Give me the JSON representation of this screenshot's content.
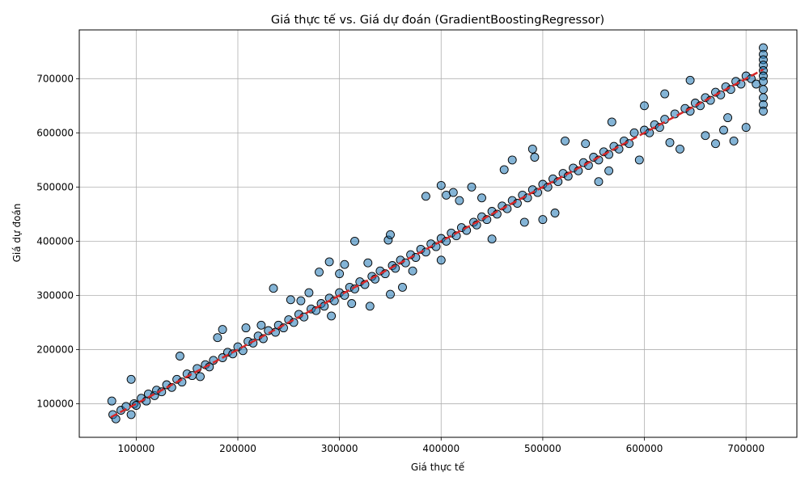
{
  "chart_data": {
    "type": "scatter",
    "title": "Giá thực tế vs. Giá dự đoán (GradientBoostingRegressor)",
    "xlabel": "Giá thực tế",
    "ylabel": "Giá dự đoán",
    "xlim": [
      44000,
      750000
    ],
    "ylim": [
      38000,
      790000
    ],
    "xticks": [
      100000,
      200000,
      300000,
      400000,
      500000,
      600000,
      700000
    ],
    "yticks": [
      100000,
      200000,
      300000,
      400000,
      500000,
      600000,
      700000
    ],
    "xtick_labels": [
      "100000",
      "200000",
      "300000",
      "400000",
      "500000",
      "600000",
      "700000"
    ],
    "ytick_labels": [
      "100000",
      "200000",
      "300000",
      "400000",
      "500000",
      "600000",
      "700000"
    ],
    "grid": true,
    "reference_line": {
      "x": [
        75000,
        717000
      ],
      "y": [
        75000,
        717000
      ],
      "style": "dashed",
      "color": "#d62728"
    },
    "marker_color": "#1f77b4",
    "marker_edge_color": "#000000",
    "points": [
      [
        76000,
        105000
      ],
      [
        77000,
        80000
      ],
      [
        80000,
        72000
      ],
      [
        85000,
        88000
      ],
      [
        90000,
        95000
      ],
      [
        95000,
        145000
      ],
      [
        95000,
        80000
      ],
      [
        98000,
        100000
      ],
      [
        100000,
        97000
      ],
      [
        105000,
        110000
      ],
      [
        110000,
        105000
      ],
      [
        112000,
        118000
      ],
      [
        118000,
        115000
      ],
      [
        120000,
        125000
      ],
      [
        125000,
        122000
      ],
      [
        130000,
        135000
      ],
      [
        135000,
        130000
      ],
      [
        140000,
        145000
      ],
      [
        143000,
        188000
      ],
      [
        145000,
        140000
      ],
      [
        150000,
        155000
      ],
      [
        155000,
        152000
      ],
      [
        160000,
        165000
      ],
      [
        163000,
        150000
      ],
      [
        168000,
        172000
      ],
      [
        172000,
        168000
      ],
      [
        176000,
        180000
      ],
      [
        180000,
        222000
      ],
      [
        185000,
        237000
      ],
      [
        185000,
        185000
      ],
      [
        190000,
        195000
      ],
      [
        195000,
        192000
      ],
      [
        200000,
        205000
      ],
      [
        205000,
        198000
      ],
      [
        208000,
        240000
      ],
      [
        210000,
        215000
      ],
      [
        215000,
        212000
      ],
      [
        220000,
        225000
      ],
      [
        223000,
        245000
      ],
      [
        225000,
        220000
      ],
      [
        230000,
        235000
      ],
      [
        235000,
        313000
      ],
      [
        237000,
        232000
      ],
      [
        240000,
        245000
      ],
      [
        245000,
        240000
      ],
      [
        250000,
        255000
      ],
      [
        252000,
        292000
      ],
      [
        255000,
        250000
      ],
      [
        260000,
        265000
      ],
      [
        262000,
        290000
      ],
      [
        265000,
        260000
      ],
      [
        270000,
        305000
      ],
      [
        272000,
        275000
      ],
      [
        277000,
        272000
      ],
      [
        280000,
        343000
      ],
      [
        282000,
        285000
      ],
      [
        285000,
        280000
      ],
      [
        290000,
        362000
      ],
      [
        290000,
        295000
      ],
      [
        292000,
        262000
      ],
      [
        295000,
        290000
      ],
      [
        300000,
        340000
      ],
      [
        300000,
        305000
      ],
      [
        305000,
        357000
      ],
      [
        305000,
        300000
      ],
      [
        310000,
        315000
      ],
      [
        312000,
        285000
      ],
      [
        315000,
        400000
      ],
      [
        315000,
        312000
      ],
      [
        320000,
        325000
      ],
      [
        325000,
        320000
      ],
      [
        328000,
        360000
      ],
      [
        330000,
        280000
      ],
      [
        332000,
        335000
      ],
      [
        335000,
        330000
      ],
      [
        340000,
        345000
      ],
      [
        345000,
        340000
      ],
      [
        348000,
        402000
      ],
      [
        350000,
        412000
      ],
      [
        350000,
        302000
      ],
      [
        352000,
        355000
      ],
      [
        355000,
        350000
      ],
      [
        360000,
        365000
      ],
      [
        362000,
        315000
      ],
      [
        365000,
        360000
      ],
      [
        370000,
        375000
      ],
      [
        372000,
        345000
      ],
      [
        375000,
        370000
      ],
      [
        380000,
        385000
      ],
      [
        385000,
        483000
      ],
      [
        385000,
        380000
      ],
      [
        390000,
        395000
      ],
      [
        395000,
        390000
      ],
      [
        400000,
        503000
      ],
      [
        400000,
        405000
      ],
      [
        400000,
        365000
      ],
      [
        405000,
        485000
      ],
      [
        405000,
        400000
      ],
      [
        410000,
        415000
      ],
      [
        412000,
        490000
      ],
      [
        415000,
        410000
      ],
      [
        418000,
        475000
      ],
      [
        420000,
        425000
      ],
      [
        425000,
        420000
      ],
      [
        430000,
        500000
      ],
      [
        432000,
        435000
      ],
      [
        435000,
        430000
      ],
      [
        440000,
        480000
      ],
      [
        440000,
        445000
      ],
      [
        445000,
        440000
      ],
      [
        450000,
        404000
      ],
      [
        450000,
        455000
      ],
      [
        455000,
        450000
      ],
      [
        460000,
        465000
      ],
      [
        462000,
        532000
      ],
      [
        465000,
        460000
      ],
      [
        470000,
        550000
      ],
      [
        470000,
        475000
      ],
      [
        475000,
        470000
      ],
      [
        480000,
        485000
      ],
      [
        482000,
        435000
      ],
      [
        485000,
        480000
      ],
      [
        490000,
        570000
      ],
      [
        490000,
        495000
      ],
      [
        492000,
        555000
      ],
      [
        495000,
        490000
      ],
      [
        500000,
        505000
      ],
      [
        500000,
        440000
      ],
      [
        505000,
        500000
      ],
      [
        510000,
        515000
      ],
      [
        512000,
        452000
      ],
      [
        515000,
        510000
      ],
      [
        520000,
        525000
      ],
      [
        522000,
        585000
      ],
      [
        525000,
        520000
      ],
      [
        530000,
        535000
      ],
      [
        535000,
        530000
      ],
      [
        540000,
        545000
      ],
      [
        542000,
        580000
      ],
      [
        545000,
        540000
      ],
      [
        550000,
        555000
      ],
      [
        555000,
        510000
      ],
      [
        555000,
        550000
      ],
      [
        560000,
        565000
      ],
      [
        565000,
        560000
      ],
      [
        565000,
        530000
      ],
      [
        568000,
        620000
      ],
      [
        570000,
        575000
      ],
      [
        575000,
        570000
      ],
      [
        580000,
        585000
      ],
      [
        585000,
        580000
      ],
      [
        590000,
        600000
      ],
      [
        595000,
        550000
      ],
      [
        600000,
        650000
      ],
      [
        600000,
        605000
      ],
      [
        605000,
        600000
      ],
      [
        610000,
        615000
      ],
      [
        615000,
        610000
      ],
      [
        620000,
        672000
      ],
      [
        620000,
        625000
      ],
      [
        625000,
        582000
      ],
      [
        630000,
        635000
      ],
      [
        635000,
        570000
      ],
      [
        640000,
        645000
      ],
      [
        645000,
        697000
      ],
      [
        645000,
        640000
      ],
      [
        650000,
        655000
      ],
      [
        655000,
        650000
      ],
      [
        660000,
        665000
      ],
      [
        660000,
        595000
      ],
      [
        665000,
        660000
      ],
      [
        670000,
        580000
      ],
      [
        670000,
        675000
      ],
      [
        675000,
        670000
      ],
      [
        678000,
        605000
      ],
      [
        680000,
        685000
      ],
      [
        682000,
        628000
      ],
      [
        685000,
        680000
      ],
      [
        688000,
        585000
      ],
      [
        690000,
        695000
      ],
      [
        695000,
        690000
      ],
      [
        700000,
        610000
      ],
      [
        700000,
        705000
      ],
      [
        705000,
        700000
      ],
      [
        710000,
        690000
      ],
      [
        717000,
        757000
      ],
      [
        717000,
        745000
      ],
      [
        717000,
        735000
      ],
      [
        717000,
        725000
      ],
      [
        717000,
        715000
      ],
      [
        717000,
        705000
      ],
      [
        717000,
        695000
      ],
      [
        717000,
        680000
      ],
      [
        717000,
        665000
      ],
      [
        717000,
        652000
      ],
      [
        717000,
        640000
      ]
    ]
  }
}
